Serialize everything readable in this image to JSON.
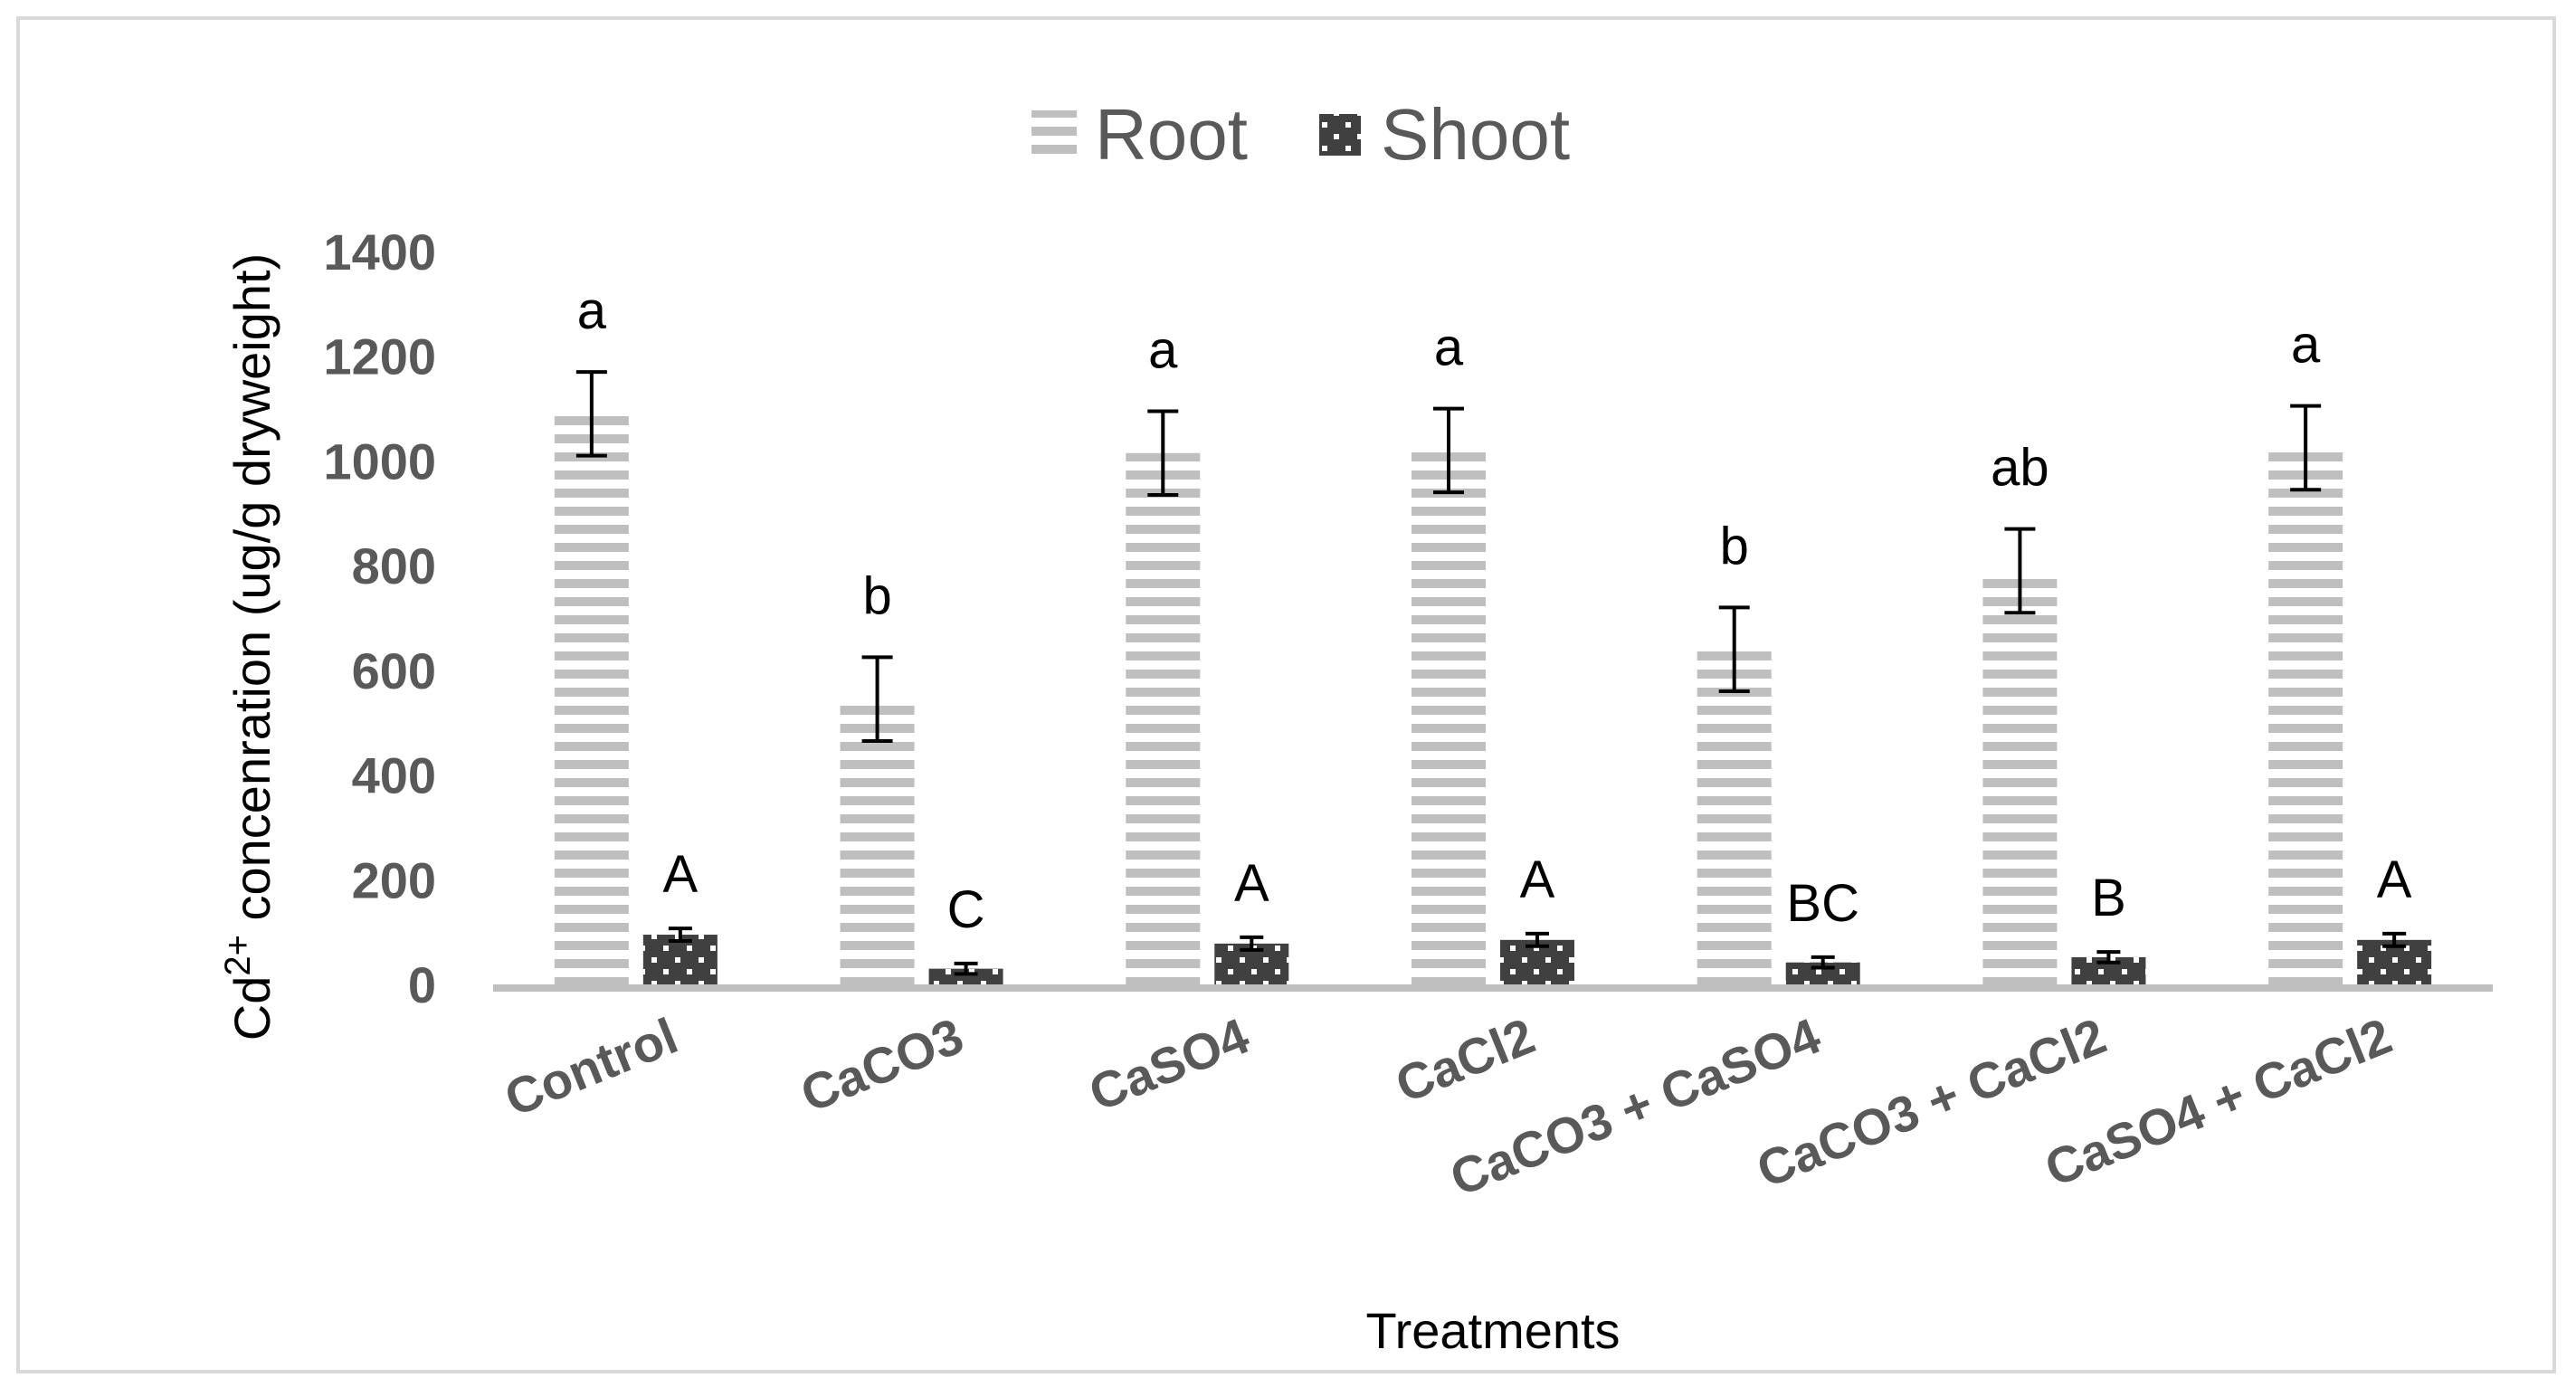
{
  "chart_data": {
    "type": "bar",
    "title": "",
    "xlabel": "Treatments",
    "ylabel_prefix": "Cd",
    "ylabel_sup": "2+",
    "ylabel_suffix": " concenration (ug/g dryweight)",
    "ylim": [
      0,
      1400
    ],
    "yticks": [
      0,
      200,
      400,
      600,
      800,
      1000,
      1200,
      1400
    ],
    "legend_position": "top-center",
    "categories": [
      "Control",
      "CaCO3",
      "CaSO4",
      "CaCl2",
      "CaCO3 + CaSO4",
      "CaCO3 + CaCl2",
      "CaSO4 + CaCl2"
    ],
    "series": [
      {
        "name": "Root",
        "pattern": "horizontal-stripes",
        "color": "#bfbfbf",
        "values": [
          1090,
          545,
          1015,
          1020,
          640,
          790,
          1025
        ],
        "errors": [
          80,
          80,
          80,
          80,
          80,
          80,
          80
        ],
        "labels": [
          "a",
          "b",
          "a",
          "a",
          "b",
          "ab",
          "a"
        ]
      },
      {
        "name": "Shoot",
        "pattern": "dotted-dark",
        "color": "#404040",
        "values": [
          95,
          30,
          78,
          85,
          42,
          52,
          85
        ],
        "errors": [
          12,
          10,
          12,
          12,
          10,
          10,
          12
        ],
        "labels": [
          "A",
          "C",
          "A",
          "A",
          "BC",
          "B",
          "A"
        ]
      }
    ]
  }
}
